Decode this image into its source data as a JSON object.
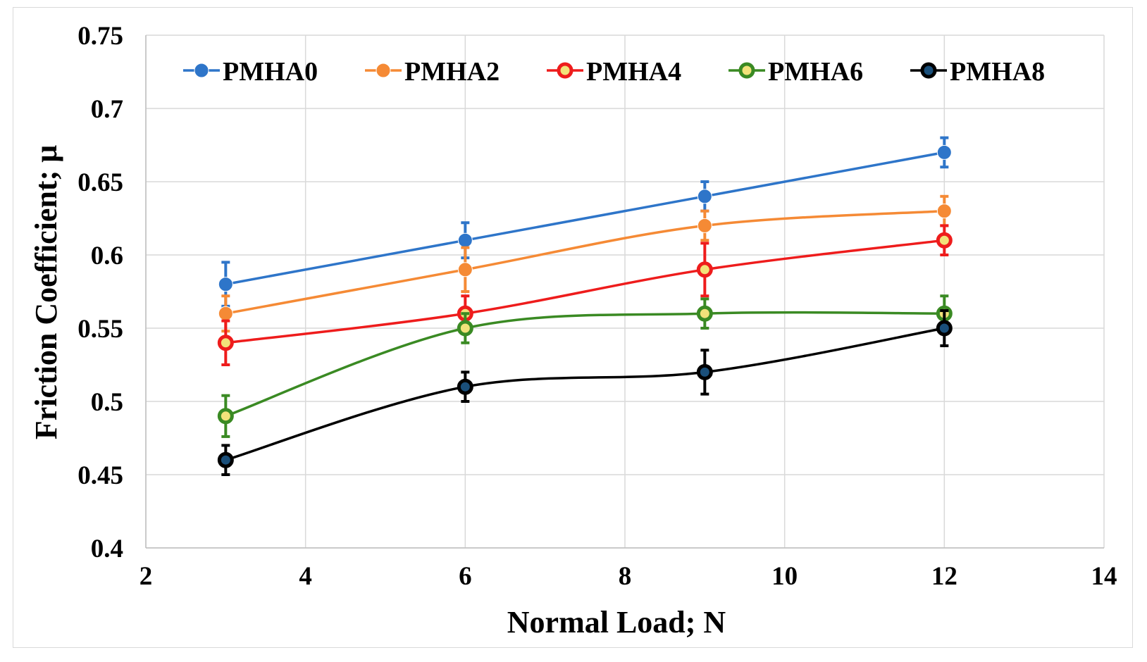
{
  "chart_data": {
    "type": "line",
    "title": "",
    "xlabel": "Normal Load; N",
    "ylabel": "Friction Coefficient; μ",
    "xlim": [
      2,
      14
    ],
    "ylim": [
      0.4,
      0.75
    ],
    "xticks": [
      2,
      4,
      6,
      8,
      10,
      12,
      14
    ],
    "yticks": [
      0.4,
      0.45,
      0.5,
      0.55,
      0.6,
      0.65,
      0.7,
      0.75
    ],
    "xtick_labels": [
      "2",
      "4",
      "6",
      "8",
      "10",
      "12",
      "14"
    ],
    "ytick_labels": [
      "0.4",
      "0.45",
      "0.5",
      "0.55",
      "0.6",
      "0.65",
      "0.7",
      "0.75"
    ],
    "grid": true,
    "legend_position": "top",
    "x": [
      3,
      6,
      9,
      12
    ],
    "series": [
      {
        "name": "PMHA0",
        "color": "#2e75c9",
        "values": [
          0.58,
          0.61,
          0.64,
          0.67
        ],
        "errors": [
          0.015,
          0.012,
          0.01,
          0.01
        ],
        "smooth": false,
        "marker": "filled"
      },
      {
        "name": "PMHA2",
        "color": "#f58a35",
        "values": [
          0.56,
          0.59,
          0.62,
          0.63
        ],
        "errors": [
          0.012,
          0.015,
          0.01,
          0.01
        ],
        "smooth": true,
        "marker": "filled"
      },
      {
        "name": "PMHA4",
        "color": "#ee1c1c",
        "values": [
          0.54,
          0.56,
          0.59,
          0.61
        ],
        "errors": [
          0.015,
          0.012,
          0.018,
          0.01
        ],
        "smooth": true,
        "marker": "ring"
      },
      {
        "name": "PMHA6",
        "color": "#3a8a23",
        "values": [
          0.49,
          0.55,
          0.56,
          0.56
        ],
        "errors": [
          0.014,
          0.01,
          0.01,
          0.012
        ],
        "smooth": true,
        "marker": "ring"
      },
      {
        "name": "PMHA8",
        "color": "#000000",
        "values": [
          0.46,
          0.51,
          0.52,
          0.55
        ],
        "errors": [
          0.01,
          0.01,
          0.015,
          0.012
        ],
        "smooth": true,
        "marker": "ring"
      }
    ]
  }
}
